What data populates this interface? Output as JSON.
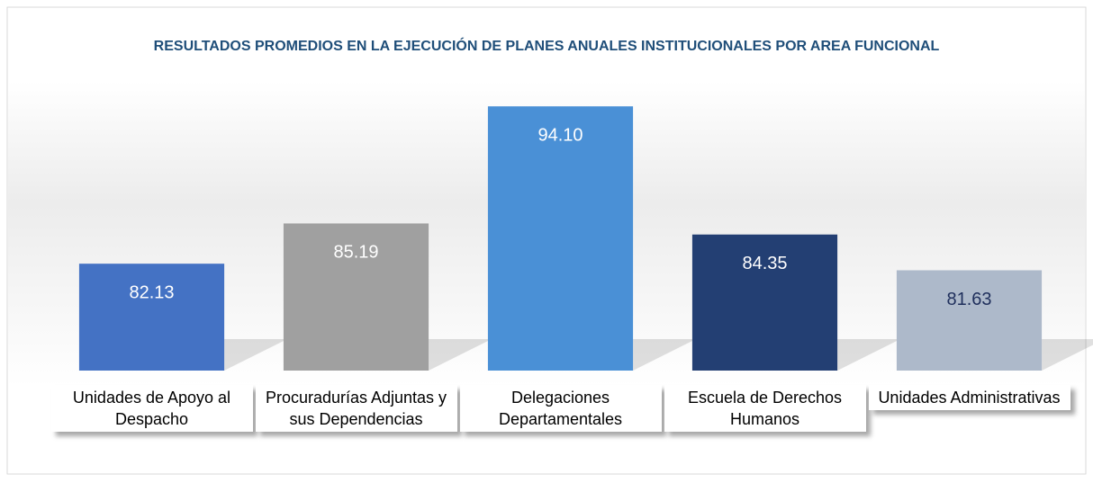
{
  "chart_data": {
    "type": "bar",
    "title": "RESULTADOS PROMEDIOS EN LA EJECUCIÓN DE PLANES ANUALES INSTITUCIONALES POR AREA FUNCIONAL",
    "categories": [
      "Unidades de Apoyo al Despacho",
      "Procuradurías Adjuntas y sus Dependencias",
      "Delegaciones Departamentales",
      "Escuela de Derechos Humanos",
      "Unidades Administrativas"
    ],
    "values": [
      82.13,
      85.19,
      94.1,
      84.35,
      81.63
    ],
    "value_labels": [
      "82.13",
      "85.19",
      "94.10",
      "84.35",
      "81.63"
    ],
    "colors": [
      "#4472c4",
      "#a0a0a0",
      "#4a90d6",
      "#233f73",
      "#adb9ca"
    ],
    "value_label_colors": [
      "#ffffff",
      "#ffffff",
      "#ffffff",
      "#ffffff",
      "#1f2f5c"
    ],
    "ylim": [
      74,
      100
    ]
  }
}
